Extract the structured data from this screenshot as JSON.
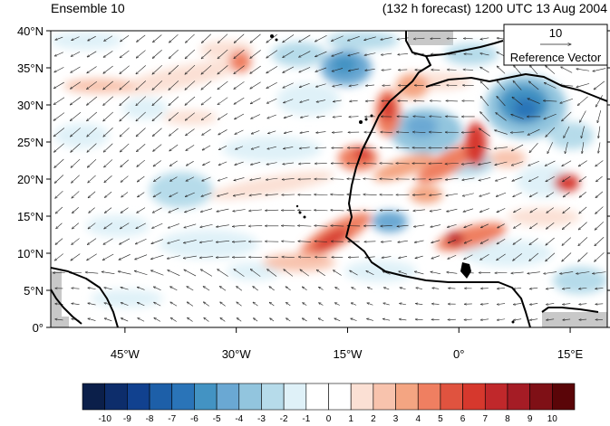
{
  "header": {
    "left_title": "Ensemble 10",
    "right_title": "(132 h forecast) 1200 UTC 13 Aug 2004"
  },
  "reference_vector": {
    "magnitude": "10",
    "label": "Reference Vector"
  },
  "axes": {
    "lat_labels": [
      "40°N",
      "35°N",
      "30°N",
      "25°N",
      "20°N",
      "15°N",
      "10°N",
      "5°N",
      "0°"
    ],
    "lon_labels": [
      "45°W",
      "30°W",
      "15°W",
      "0°",
      "15°E"
    ],
    "lon_range": [
      -55,
      20
    ],
    "lat_range": [
      0,
      40
    ]
  },
  "colorbar": {
    "labels": [
      "-10",
      "-9",
      "-8",
      "-7",
      "-6",
      "-5",
      "-4",
      "-3",
      "-2",
      "-1",
      "0",
      "1",
      "2",
      "3",
      "4",
      "5",
      "6",
      "7",
      "8",
      "9",
      "10"
    ],
    "colors": [
      "#0b1f4a",
      "#0d2d6b",
      "#11418f",
      "#1d5fa8",
      "#2a74b8",
      "#4393c3",
      "#6aa8d3",
      "#92c5de",
      "#b6dbea",
      "#dff1f8",
      "#ffffff",
      "#ffffff",
      "#fbe0d4",
      "#f8c3ad",
      "#f4a582",
      "#ef7f61",
      "#e0533f",
      "#d6382d",
      "#c0282b",
      "#a51c25",
      "#7f1016",
      "#5a0508"
    ]
  }
}
